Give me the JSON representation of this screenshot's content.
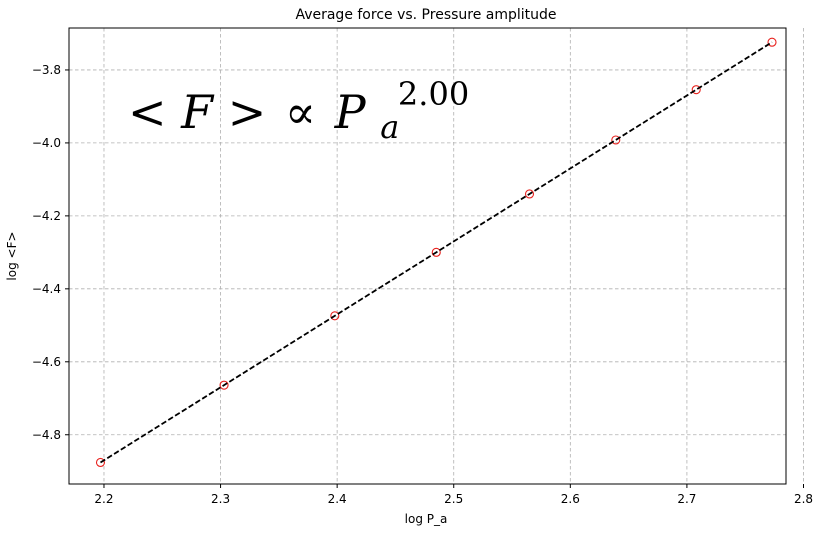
{
  "chart_data": {
    "type": "scatter",
    "title": "Average force vs. Pressure amplitude",
    "xlabel": "log P_a",
    "ylabel": "log <F>",
    "xlim": [
      2.17,
      2.785
    ],
    "ylim": [
      -4.935,
      -3.685
    ],
    "x_ticks": [
      2.2,
      2.3,
      2.4,
      2.5,
      2.6,
      2.7,
      2.8
    ],
    "x_tick_labels": [
      "2.2",
      "2.3",
      "2.4",
      "2.5",
      "2.6",
      "2.7",
      "2.8"
    ],
    "y_ticks": [
      -3.8,
      -4.0,
      -4.2,
      -4.4,
      -4.6,
      -4.8
    ],
    "y_tick_labels": [
      "−3.8",
      "−4.0",
      "−4.2",
      "−4.4",
      "−4.6",
      "−4.8"
    ],
    "grid": true,
    "annotation": {
      "lhs": "< F >",
      "prop": "∝",
      "base": "P",
      "subscript": "a",
      "exponent": "2.00"
    },
    "series": [
      {
        "marker": "open-circle",
        "color": "#e8211d",
        "x": [
          2.197,
          2.303,
          2.398,
          2.485,
          2.565,
          2.639,
          2.708,
          2.773
        ],
        "y": [
          -4.876,
          -4.664,
          -4.474,
          -4.3,
          -4.14,
          -3.992,
          -3.854,
          -3.724
        ]
      },
      {
        "line_style": "dashed",
        "color": "#000000",
        "x": [
          2.197,
          2.773
        ],
        "y": [
          -4.876,
          -3.724
        ]
      }
    ]
  }
}
